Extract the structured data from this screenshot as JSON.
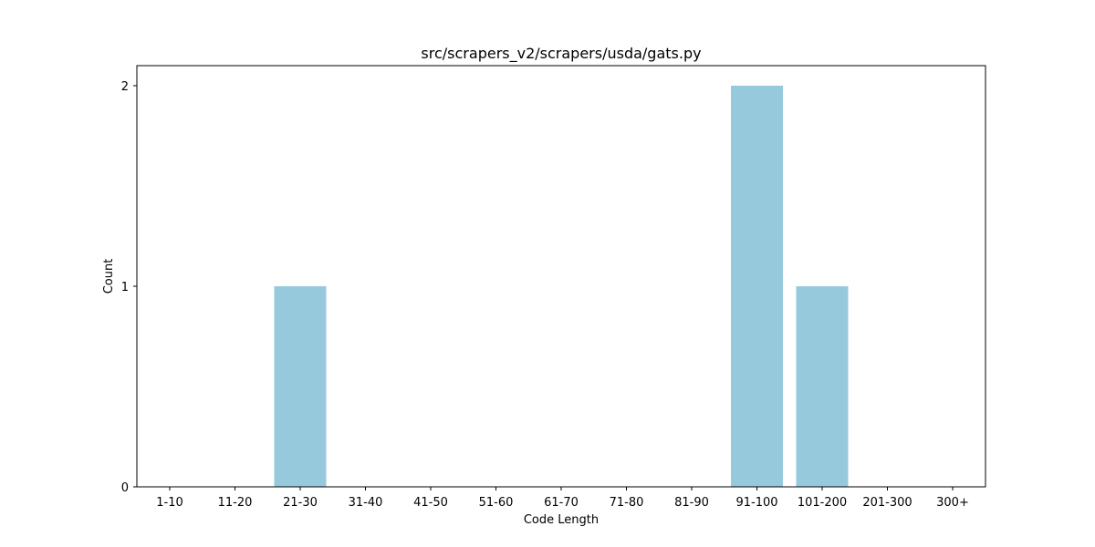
{
  "chart_data": {
    "type": "bar",
    "title": "src/scrapers_v2/scrapers/usda/gats.py",
    "xlabel": "Code Length",
    "ylabel": "Count",
    "categories": [
      "1-10",
      "11-20",
      "21-30",
      "31-40",
      "41-50",
      "51-60",
      "61-70",
      "71-80",
      "81-90",
      "91-100",
      "101-200",
      "201-300",
      "300+"
    ],
    "values": [
      0,
      0,
      1,
      0,
      0,
      0,
      0,
      0,
      0,
      2,
      1,
      0,
      0
    ],
    "ylim": [
      0,
      2.1
    ],
    "yticks": [
      0,
      1,
      2
    ],
    "grid": false,
    "legend": "none",
    "bar_color": "#96c9dc"
  }
}
